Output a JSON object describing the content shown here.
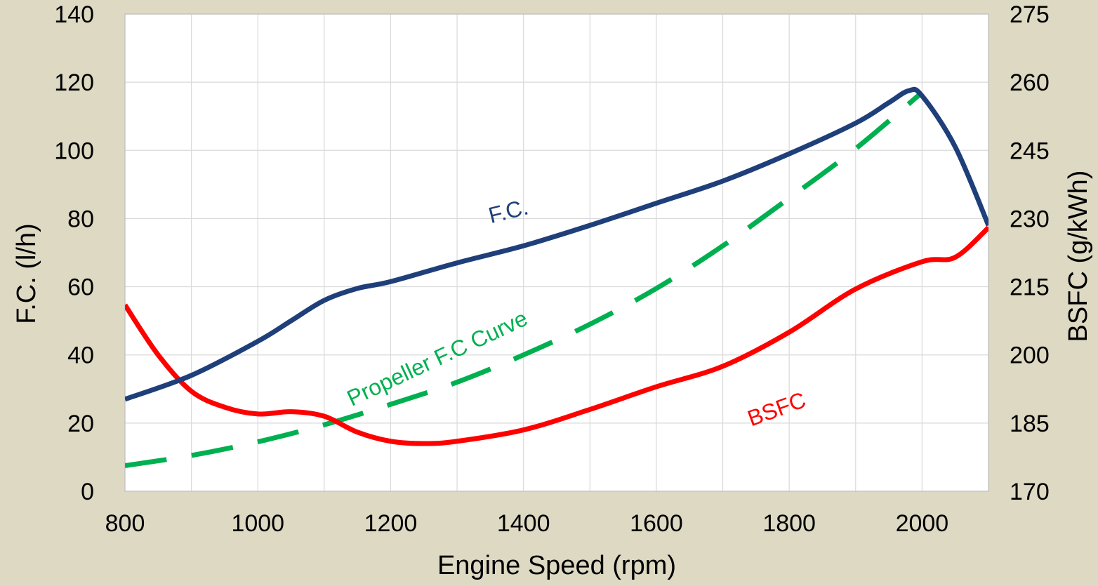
{
  "chart_data": {
    "type": "line",
    "title": "",
    "xlabel": "Engine Speed (rpm)",
    "ylabel": "F.C. (l/h)",
    "y2label": "BSFC (g/kWh)",
    "xlim": [
      800,
      2100
    ],
    "ylim": [
      0,
      140
    ],
    "y2lim": [
      170,
      275
    ],
    "grid": true,
    "x_ticks": [
      800,
      1000,
      1200,
      1400,
      1600,
      1800,
      2000
    ],
    "x_tick_labels": [
      "800",
      "1000",
      "1200",
      "1400",
      "1600",
      "1800",
      "2000"
    ],
    "y_ticks": [
      0,
      20,
      40,
      60,
      80,
      100,
      120,
      140
    ],
    "y_tick_labels": [
      "0",
      "20",
      "40",
      "60",
      "80",
      "100",
      "120",
      "140"
    ],
    "y2_ticks": [
      170,
      185,
      200,
      215,
      230,
      245,
      260,
      275
    ],
    "y2_tick_labels": [
      "170",
      "185",
      "200",
      "215",
      "230",
      "245",
      "260",
      "275"
    ],
    "series": [
      {
        "name": "F.C.",
        "axis": "left",
        "color": "#1f3f7a",
        "style": "solid",
        "x": [
          800,
          900,
          1000,
          1050,
          1100,
          1150,
          1200,
          1300,
          1400,
          1500,
          1600,
          1700,
          1800,
          1900,
          1950,
          1980,
          2000,
          2050,
          2100
        ],
        "y": [
          27,
          34,
          44,
          50,
          56,
          59.5,
          61.5,
          67,
          72,
          78,
          84.5,
          91,
          99,
          108,
          114,
          117.5,
          116,
          101,
          78
        ]
      },
      {
        "name": "BSFC",
        "axis": "right",
        "color": "#ff0000",
        "style": "solid",
        "x": [
          800,
          850,
          900,
          950,
          1000,
          1050,
          1100,
          1150,
          1200,
          1250,
          1300,
          1400,
          1500,
          1600,
          1700,
          1800,
          1900,
          2000,
          2050,
          2100
        ],
        "y": [
          211,
          200,
          192,
          188.5,
          187,
          187.5,
          186.5,
          183,
          181,
          180.5,
          181,
          183.5,
          188,
          193,
          197.5,
          205,
          214.5,
          220.5,
          221.5,
          228
        ]
      },
      {
        "name": "Propeller F.C Curve",
        "axis": "left",
        "color": "#00b050",
        "style": "dashed",
        "x": [
          800,
          900,
          1000,
          1100,
          1200,
          1300,
          1400,
          1500,
          1600,
          1700,
          1800,
          1900,
          2000
        ],
        "y": [
          7.5,
          10.5,
          14.5,
          19.5,
          25.5,
          32,
          40,
          49,
          59.5,
          72,
          86,
          100.5,
          117
        ]
      }
    ],
    "annotations": [
      {
        "text": "F.C.",
        "series": "F.C.",
        "x": 1380,
        "y": 80,
        "angle": -14
      },
      {
        "text": "Propeller F.C Curve",
        "series": "Propeller F.C Curve",
        "x": 1275,
        "y": 37,
        "angle": -25
      },
      {
        "text": "BSFC",
        "series": "BSFC",
        "x": 1785,
        "y": 22,
        "angle": -20
      }
    ]
  }
}
